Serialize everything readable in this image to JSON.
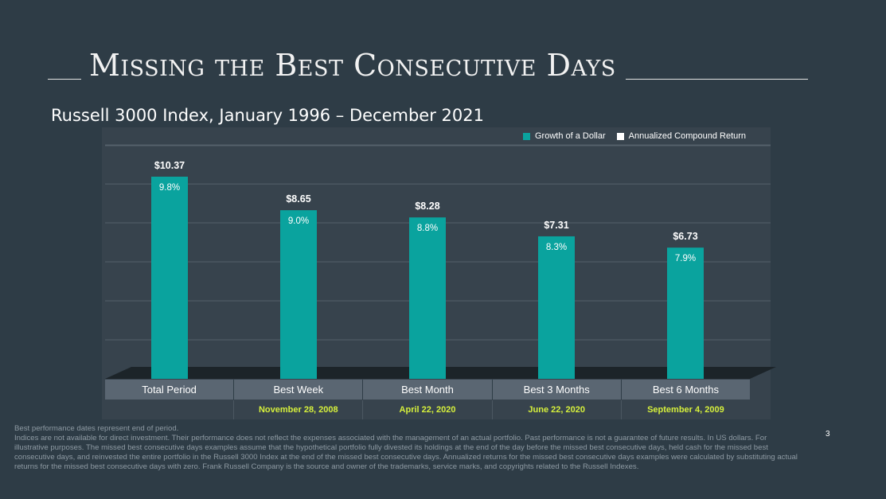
{
  "title": "Missing the Best Consecutive Days",
  "subtitle": "Russell 3000 Index, January 1996 – December 2021",
  "legend": {
    "growth_label": "Growth of a Dollar",
    "return_label": "Annualized Compound Return",
    "growth_color": "#0aa39e",
    "return_color": "#ffffff"
  },
  "chart_data": {
    "type": "bar",
    "categories": [
      "Total Period",
      "Best Week",
      "Best Month",
      "Best 3 Months",
      "Best 6 Months"
    ],
    "series": [
      {
        "name": "Growth of a Dollar",
        "values": [
          10.37,
          8.65,
          8.28,
          7.31,
          6.73
        ],
        "labels": [
          "$10.37",
          "$8.65",
          "$8.28",
          "$7.31",
          "$6.73"
        ]
      },
      {
        "name": "Annualized Compound Return",
        "values": [
          9.8,
          9.0,
          8.8,
          8.3,
          7.9
        ],
        "labels": [
          "9.8%",
          "9.0%",
          "8.8%",
          "8.3%",
          "7.9%"
        ]
      }
    ],
    "dates": [
      "",
      "November 28, 2008",
      "April 22, 2020",
      "June 22, 2020",
      "September 4, 2009"
    ],
    "ylim": [
      0,
      12
    ],
    "grid": true,
    "legend_position": "top-right",
    "bar_color": "#0aa39e"
  },
  "footnotes": [
    "Best performance dates represent end of period.",
    "Indices are not available for direct investment. Their performance does not reflect the expenses associated with the management of an actual portfolio. Past performance is not a guarantee of future results. In US dollars. For illustrative purposes. The missed best consecutive days examples assume that the hypothetical portfolio fully divested its holdings at the end of the day before the missed best consecutive days, held cash for the missed best consecutive days, and reinvested the entire portfolio in the Russell 3000 Index at the end of the missed best consecutive days. Annualized returns for the missed best consecutive days examples were calculated by substituting actual returns for the missed best consecutive days with zero. Frank Russell Company is the source and owner of the trademarks, service marks, and copyrights related to the Russell Indexes."
  ],
  "page_number": "3"
}
